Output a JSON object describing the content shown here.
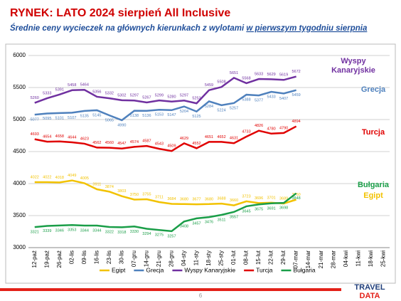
{
  "header": {
    "title": "RYNEK: LATO 2024 sierpień All Inclusive",
    "subtitle": [
      "Średnie ceny wycieczek na głównych kierunkach z wylotami ",
      "w pierwszym tygodniu sierpnia"
    ]
  },
  "chart_data": {
    "type": "line",
    "categories": [
      "12-paź",
      "19-paź",
      "26-paź",
      "02-lis",
      "09-lis",
      "16-lis",
      "23-lis",
      "30-lis",
      "07-gru",
      "14-gru",
      "21-gru",
      "28-gru",
      "04-sty",
      "11-sty",
      "18-sty",
      "25-sty",
      "01-lut",
      "08-lut",
      "15-lut",
      "22-lut",
      "29-lut",
      "07-mar",
      "14-mar",
      "21-mar",
      "28-mar",
      "04-kwi",
      "11-kwi",
      "18-kwi",
      "25-kwi"
    ],
    "ylim": [
      3000,
      6000
    ],
    "yticks": [
      3000,
      3500,
      4000,
      4500,
      5000,
      5500,
      6000
    ],
    "grid": true,
    "legend": "bottom",
    "series": [
      {
        "name": "Egipt",
        "color": "#f2c200",
        "values": [
          4022,
          4022,
          4018,
          4049,
          4005,
          3911,
          3874,
          3803,
          3750,
          3755,
          3711,
          3684,
          3680,
          3677,
          3680,
          3688,
          3660,
          3723,
          3696,
          3701,
          3689,
          3750,
          null,
          null,
          null,
          null,
          null,
          null,
          null
        ]
      },
      {
        "name": "Grecja",
        "color": "#4f81bd",
        "values": [
          5077,
          5095,
          5101,
          5107,
          5135,
          5145,
          5065,
          4990,
          5138,
          5136,
          5153,
          5147,
          5204,
          5125,
          5284,
          5224,
          5257,
          5388,
          5377,
          5433,
          5407,
          5459,
          null,
          null,
          null,
          null,
          null,
          null,
          null
        ]
      },
      {
        "name": "Wyspy Kanaryjskie",
        "color": "#7030a0",
        "values": [
          5260,
          5333,
          5391,
          5458,
          5464,
          5356,
          5332,
          5302,
          5297,
          5267,
          5299,
          5280,
          5297,
          5253,
          5459,
          5508,
          5651,
          5568,
          5633,
          5629,
          5619,
          5672,
          null,
          null,
          null,
          null,
          null,
          null,
          null
        ]
      },
      {
        "name": "Turcja",
        "color": "#e00000",
        "values": [
          4693,
          4654,
          4658,
          4644,
          4623,
          4562,
          4560,
          4547,
          4574,
          4587,
          4543,
          4509,
          4629,
          4552,
          4651,
          4652,
          4631,
          4733,
          4826,
          4780,
          4790,
          4894,
          null,
          null,
          null,
          null,
          null,
          null,
          null
        ]
      },
      {
        "name": "Bułgaria",
        "color": "#1a9e48",
        "values": [
          3321,
          3339,
          3346,
          3353,
          3344,
          3344,
          3322,
          3318,
          3330,
          3294,
          3275,
          3257,
          3408,
          3457,
          3476,
          3511,
          3557,
          3645,
          3675,
          3691,
          3698,
          3848,
          null,
          null,
          null,
          null,
          null,
          null,
          null
        ]
      }
    ]
  },
  "footer": {
    "page": "6",
    "logo": [
      "TRAVEL",
      "DATA"
    ]
  }
}
